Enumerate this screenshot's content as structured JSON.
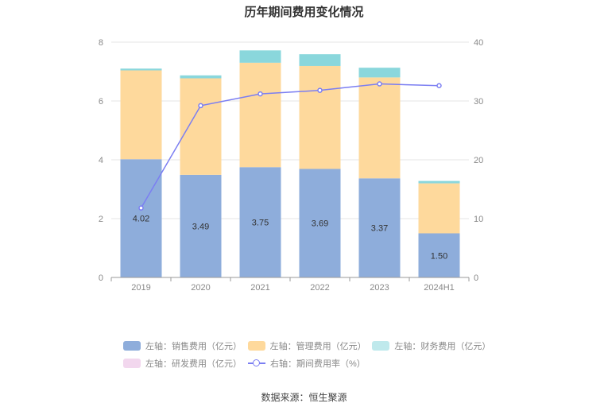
{
  "title": "历年期间费用变化情况",
  "source": "数据来源：恒生聚源",
  "chart_data": {
    "type": "bar",
    "stacked": true,
    "categories": [
      "2019",
      "2020",
      "2021",
      "2022",
      "2023",
      "2024H1"
    ],
    "y_left": {
      "min": 0,
      "max": 8,
      "ticks": [
        0,
        2,
        4,
        6,
        8
      ]
    },
    "y_right": {
      "min": 0,
      "max": 40,
      "ticks": [
        0,
        10,
        20,
        30,
        40
      ]
    },
    "grid": true,
    "legend_position": "bottom",
    "series": [
      {
        "name": "左轴：销售费用（亿元）",
        "axis": "left",
        "color": "#8eaddb",
        "values": [
          4.02,
          3.49,
          3.75,
          3.69,
          3.37,
          1.5
        ],
        "labels": [
          "4.02",
          "3.49",
          "3.75",
          "3.69",
          "3.37",
          "1.50"
        ]
      },
      {
        "name": "左轴：管理费用（亿元）",
        "axis": "left",
        "color": "#fed99c",
        "values": [
          3.02,
          3.28,
          3.55,
          3.5,
          3.43,
          1.7
        ]
      },
      {
        "name": "左轴：财务费用（亿元）",
        "axis": "left",
        "color": "#8ad7dc",
        "values": [
          0.06,
          0.1,
          0.42,
          0.4,
          0.33,
          0.08
        ]
      },
      {
        "name": "左轴：研发费用（亿元）",
        "axis": "left",
        "color": "#f2d7ee",
        "values": [
          0,
          0,
          0,
          0,
          0,
          0
        ]
      },
      {
        "name": "右轴：期间费用率（%）",
        "axis": "right",
        "type": "line",
        "color": "#7b7ef2",
        "values": [
          11.8,
          29.2,
          31.2,
          31.8,
          32.9,
          32.6
        ]
      }
    ]
  }
}
